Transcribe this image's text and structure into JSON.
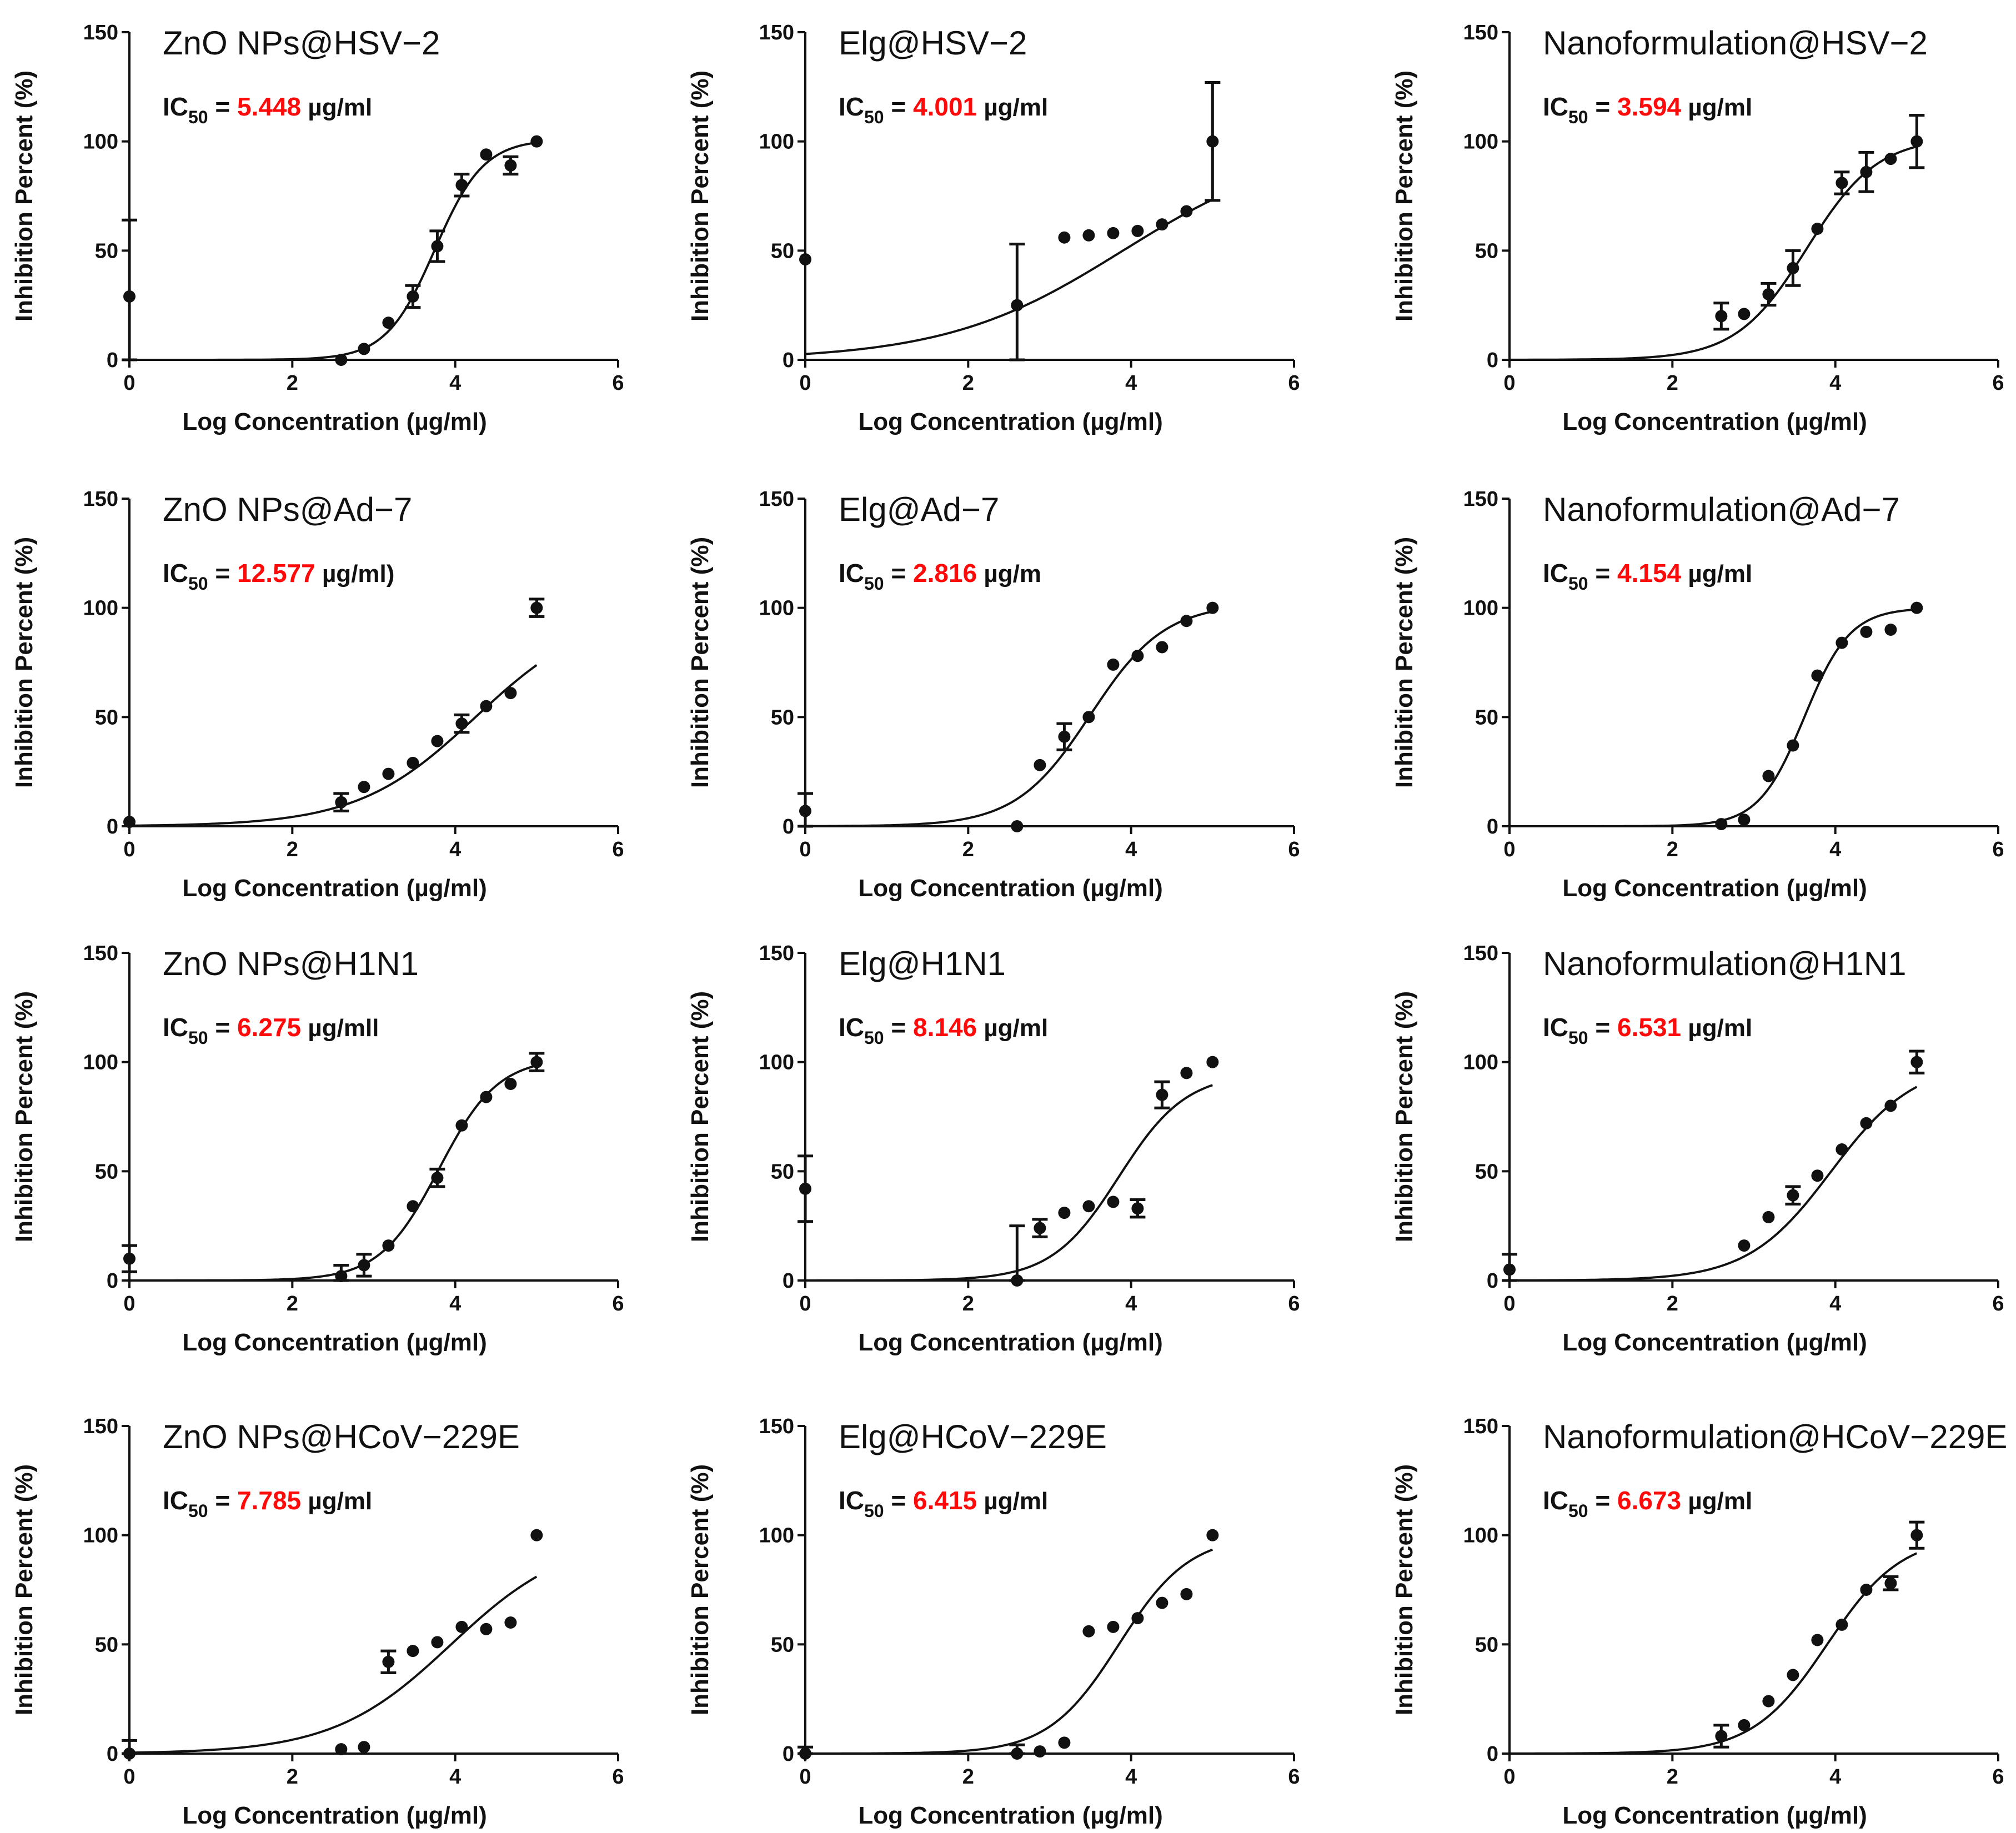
{
  "figure": {
    "x_label": "Log Concentration (µg/ml)",
    "y_label": "Inhibition Percent (%)",
    "ic50_prefix": "IC",
    "ic50_subscript": "50",
    "ic50_equals": " = "
  },
  "colors": {
    "ink": "#111111",
    "ic50_value": "#ff0a0a",
    "background": "#ffffff"
  },
  "chart_data": [
    {
      "type": "scatter",
      "title": "ZnO NPs@HSV−2",
      "ic50": "5.448",
      "ic50_unit": "µg/ml",
      "xlim": [
        0,
        6
      ],
      "ylim": [
        0,
        150
      ],
      "x_ticks": [
        0,
        2,
        4,
        6
      ],
      "y_ticks": [
        0,
        50,
        100,
        150
      ],
      "points": [
        [
          0,
          29,
          35
        ],
        [
          2.6,
          0,
          0
        ],
        [
          2.88,
          5,
          0
        ],
        [
          3.18,
          17,
          0
        ],
        [
          3.48,
          29,
          5
        ],
        [
          3.78,
          52,
          7
        ],
        [
          4.08,
          80,
          5
        ],
        [
          4.38,
          94,
          0
        ],
        [
          4.68,
          89,
          4
        ],
        [
          5.0,
          100,
          0
        ]
      ],
      "fit": {
        "bottom": 0,
        "top": 101,
        "logec50": 3.75,
        "hill": 1.45
      }
    },
    {
      "type": "scatter",
      "title": "Elg@HSV−2",
      "ic50": "4.001",
      "ic50_unit": "µg/ml",
      "xlim": [
        0,
        6
      ],
      "ylim": [
        0,
        150
      ],
      "x_ticks": [
        0,
        2,
        4,
        6
      ],
      "y_ticks": [
        0,
        50,
        100,
        150
      ],
      "points": [
        [
          0,
          46,
          0
        ],
        [
          2.6,
          25,
          28
        ],
        [
          3.18,
          56,
          0
        ],
        [
          3.48,
          57,
          0
        ],
        [
          3.78,
          58,
          0
        ],
        [
          4.08,
          59,
          0
        ],
        [
          4.38,
          62,
          0
        ],
        [
          4.68,
          68,
          0
        ],
        [
          5.0,
          100,
          27
        ]
      ],
      "fit": {
        "bottom": 0,
        "top": 100,
        "logec50": 3.9,
        "hill": 0.4
      }
    },
    {
      "type": "scatter",
      "title": "Nanoformulation@HSV−2",
      "ic50": "3.594",
      "ic50_unit": "µg/ml",
      "xlim": [
        0,
        6
      ],
      "ylim": [
        0,
        150
      ],
      "x_ticks": [
        0,
        2,
        4,
        6
      ],
      "y_ticks": [
        0,
        50,
        100,
        150
      ],
      "points": [
        [
          2.6,
          20,
          6
        ],
        [
          2.88,
          21,
          0
        ],
        [
          3.18,
          30,
          5
        ],
        [
          3.48,
          42,
          8
        ],
        [
          3.78,
          60,
          0
        ],
        [
          4.08,
          81,
          5
        ],
        [
          4.38,
          86,
          9
        ],
        [
          4.68,
          92,
          0
        ],
        [
          5.0,
          100,
          12
        ]
      ],
      "fit": {
        "bottom": 0,
        "top": 102,
        "logec50": 3.65,
        "hill": 1.0
      }
    },
    {
      "type": "scatter",
      "title": "ZnO NPs@Ad−7",
      "ic50": "12.577",
      "ic50_unit": "µg/ml)",
      "xlim": [
        0,
        6
      ],
      "ylim": [
        0,
        150
      ],
      "x_ticks": [
        0,
        2,
        4,
        6
      ],
      "y_ticks": [
        0,
        50,
        100,
        150
      ],
      "points": [
        [
          0,
          2,
          0
        ],
        [
          2.6,
          11,
          4
        ],
        [
          2.88,
          18,
          0
        ],
        [
          3.18,
          24,
          0
        ],
        [
          3.48,
          29,
          0
        ],
        [
          3.78,
          39,
          0
        ],
        [
          4.08,
          47,
          4
        ],
        [
          4.38,
          55,
          0
        ],
        [
          4.68,
          61,
          0
        ],
        [
          5.0,
          100,
          4
        ]
      ],
      "fit": {
        "bottom": 0,
        "top": 100,
        "logec50": 4.25,
        "hill": 0.6
      }
    },
    {
      "type": "scatter",
      "title": "Elg@Ad−7",
      "ic50": "2.816",
      "ic50_unit": "µg/m",
      "xlim": [
        0,
        6
      ],
      "ylim": [
        0,
        150
      ],
      "x_ticks": [
        0,
        2,
        4,
        6
      ],
      "y_ticks": [
        0,
        50,
        100,
        150
      ],
      "points": [
        [
          0,
          7,
          8
        ],
        [
          2.6,
          0,
          0
        ],
        [
          2.88,
          28,
          0
        ],
        [
          3.18,
          41,
          6
        ],
        [
          3.48,
          50,
          0
        ],
        [
          3.78,
          74,
          0
        ],
        [
          4.08,
          78,
          0
        ],
        [
          4.38,
          82,
          0
        ],
        [
          4.68,
          94,
          0
        ],
        [
          5.0,
          100,
          0
        ]
      ],
      "fit": {
        "bottom": 0,
        "top": 102,
        "logec50": 3.5,
        "hill": 0.95
      }
    },
    {
      "type": "scatter",
      "title": "Nanoformulation@Ad−7",
      "ic50": "4.154",
      "ic50_unit": "µg/ml",
      "xlim": [
        0,
        6
      ],
      "ylim": [
        0,
        150
      ],
      "x_ticks": [
        0,
        2,
        4,
        6
      ],
      "y_ticks": [
        0,
        50,
        100,
        150
      ],
      "points": [
        [
          2.6,
          1,
          0
        ],
        [
          2.88,
          3,
          0
        ],
        [
          3.18,
          23,
          0
        ],
        [
          3.48,
          37,
          0
        ],
        [
          3.78,
          69,
          0
        ],
        [
          4.08,
          84,
          0
        ],
        [
          4.38,
          89,
          0
        ],
        [
          4.68,
          90,
          0
        ],
        [
          5.0,
          100,
          0
        ]
      ],
      "fit": {
        "bottom": 0,
        "top": 100,
        "logec50": 3.62,
        "hill": 1.55
      }
    },
    {
      "type": "scatter",
      "title": "ZnO NPs@H1N1",
      "ic50": "6.275",
      "ic50_unit": "µg/mll",
      "xlim": [
        0,
        6
      ],
      "ylim": [
        0,
        150
      ],
      "x_ticks": [
        0,
        2,
        4,
        6
      ],
      "y_ticks": [
        0,
        50,
        100,
        150
      ],
      "points": [
        [
          0,
          10,
          6
        ],
        [
          2.6,
          2,
          5
        ],
        [
          2.88,
          7,
          5
        ],
        [
          3.18,
          16,
          0
        ],
        [
          3.48,
          34,
          0
        ],
        [
          3.78,
          47,
          4
        ],
        [
          4.08,
          71,
          0
        ],
        [
          4.38,
          84,
          0
        ],
        [
          4.68,
          90,
          0
        ],
        [
          5.0,
          100,
          4
        ]
      ],
      "fit": {
        "bottom": 0,
        "top": 102,
        "logec50": 3.8,
        "hill": 1.2
      }
    },
    {
      "type": "scatter",
      "title": "Elg@H1N1",
      "ic50": "8.146",
      "ic50_unit": "µg/ml",
      "xlim": [
        0,
        6
      ],
      "ylim": [
        0,
        150
      ],
      "x_ticks": [
        0,
        2,
        4,
        6
      ],
      "y_ticks": [
        0,
        50,
        100,
        150
      ],
      "points": [
        [
          0,
          42,
          15
        ],
        [
          2.6,
          0,
          25
        ],
        [
          2.88,
          24,
          4
        ],
        [
          3.18,
          31,
          0
        ],
        [
          3.48,
          34,
          0
        ],
        [
          3.78,
          36,
          0
        ],
        [
          4.08,
          33,
          4
        ],
        [
          4.38,
          85,
          6
        ],
        [
          4.68,
          95,
          0
        ],
        [
          5.0,
          100,
          0
        ]
      ],
      "fit": {
        "bottom": 0,
        "top": 95,
        "logec50": 3.85,
        "hill": 1.05
      }
    },
    {
      "type": "scatter",
      "title": "Nanoformulation@H1N1",
      "ic50": "6.531",
      "ic50_unit": "µg/ml",
      "xlim": [
        0,
        6
      ],
      "ylim": [
        0,
        150
      ],
      "x_ticks": [
        0,
        2,
        4,
        6
      ],
      "y_ticks": [
        0,
        50,
        100,
        150
      ],
      "points": [
        [
          0,
          5,
          7
        ],
        [
          2.88,
          16,
          0
        ],
        [
          3.18,
          29,
          0
        ],
        [
          3.48,
          39,
          4
        ],
        [
          3.78,
          48,
          0
        ],
        [
          4.08,
          60,
          0
        ],
        [
          4.38,
          72,
          0
        ],
        [
          4.68,
          80,
          0
        ],
        [
          5.0,
          100,
          5
        ]
      ],
      "fit": {
        "bottom": 0,
        "top": 100,
        "logec50": 3.95,
        "hill": 0.85
      }
    },
    {
      "type": "scatter",
      "title": "ZnO NPs@HCoV−229E",
      "ic50": "7.785",
      "ic50_unit": "µg/ml",
      "xlim": [
        0,
        6
      ],
      "ylim": [
        0,
        150
      ],
      "x_ticks": [
        0,
        2,
        4,
        6
      ],
      "y_ticks": [
        0,
        50,
        100,
        150
      ],
      "points": [
        [
          0,
          0,
          6
        ],
        [
          2.6,
          2,
          0
        ],
        [
          2.88,
          3,
          0
        ],
        [
          3.18,
          42,
          5
        ],
        [
          3.48,
          47,
          0
        ],
        [
          3.78,
          51,
          0
        ],
        [
          4.08,
          58,
          0
        ],
        [
          4.38,
          57,
          0
        ],
        [
          4.68,
          60,
          0
        ],
        [
          5.0,
          100,
          0
        ]
      ],
      "fit": {
        "bottom": 0,
        "top": 100,
        "logec50": 3.95,
        "hill": 0.6
      }
    },
    {
      "type": "scatter",
      "title": "Elg@HCoV−229E",
      "ic50": "6.415",
      "ic50_unit": "µg/ml",
      "xlim": [
        0,
        6
      ],
      "ylim": [
        0,
        150
      ],
      "x_ticks": [
        0,
        2,
        4,
        6
      ],
      "y_ticks": [
        0,
        50,
        100,
        150
      ],
      "points": [
        [
          0,
          0,
          3
        ],
        [
          2.6,
          0,
          4
        ],
        [
          2.88,
          1,
          0
        ],
        [
          3.18,
          5,
          0
        ],
        [
          3.48,
          56,
          0
        ],
        [
          3.78,
          58,
          0
        ],
        [
          4.08,
          62,
          0
        ],
        [
          4.38,
          69,
          0
        ],
        [
          4.68,
          73,
          0
        ],
        [
          5.0,
          100,
          0
        ]
      ],
      "fit": {
        "bottom": 0,
        "top": 100,
        "logec50": 3.85,
        "hill": 1.0
      }
    },
    {
      "type": "scatter",
      "title": "Nanoformulation@HCoV−229E",
      "ic50": "6.673",
      "ic50_unit": "µg/ml",
      "xlim": [
        0,
        6
      ],
      "ylim": [
        0,
        150
      ],
      "x_ticks": [
        0,
        2,
        4,
        6
      ],
      "y_ticks": [
        0,
        50,
        100,
        150
      ],
      "points": [
        [
          2.6,
          8,
          5
        ],
        [
          2.88,
          13,
          0
        ],
        [
          3.18,
          24,
          0
        ],
        [
          3.48,
          36,
          0
        ],
        [
          3.78,
          52,
          0
        ],
        [
          4.08,
          59,
          0
        ],
        [
          4.38,
          75,
          0
        ],
        [
          4.68,
          78,
          3
        ],
        [
          5.0,
          100,
          6
        ]
      ],
      "fit": {
        "bottom": 0,
        "top": 100,
        "logec50": 3.9,
        "hill": 0.95
      }
    }
  ]
}
